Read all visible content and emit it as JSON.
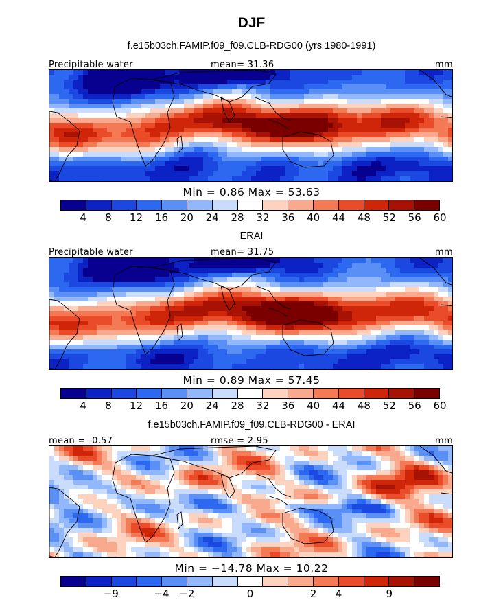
{
  "season": "DJF",
  "palette_main": [
    "#08008f",
    "#0c22c4",
    "#1a48e0",
    "#2c68f0",
    "#5a8ff5",
    "#92b7fa",
    "#cadcfb",
    "#ffffff",
    "#fdd3bf",
    "#f9a98d",
    "#f47a56",
    "#ea4b28",
    "#cf2508",
    "#a81204",
    "#7a0000"
  ],
  "palette_diff": [
    "#08008f",
    "#0c22c4",
    "#1a48e0",
    "#2c68f0",
    "#5a8ff5",
    "#92b7fa",
    "#cadcfb",
    "#ffffff",
    "#fdd3bf",
    "#f9a98d",
    "#f47a56",
    "#ea4b28",
    "#cf2508",
    "#a81204",
    "#7a0000"
  ],
  "panels": [
    {
      "title": "f.e15b03ch.FAMIP.f09_f09.CLB-RDG00 (yrs 1980-1991)",
      "left_label": "Precipitable water",
      "center_label": "mean=  31.36",
      "right_label": "mm",
      "minmax": "Min =    0.86  Max =   53.63",
      "ticks": [
        "4",
        "8",
        "12",
        "16",
        "20",
        "24",
        "28",
        "32",
        "36",
        "40",
        "44",
        "48",
        "52",
        "56",
        "60"
      ]
    },
    {
      "title": "ERAI",
      "left_label": "Precipitable water",
      "center_label": "mean=  31.75",
      "right_label": "mm",
      "minmax": "Min =    0.89  Max =   57.45",
      "ticks": [
        "4",
        "8",
        "12",
        "16",
        "20",
        "24",
        "28",
        "32",
        "36",
        "40",
        "44",
        "48",
        "52",
        "56",
        "60"
      ]
    },
    {
      "title": "f.e15b03ch.FAMIP.f09_f09.CLB-RDG00 - ERAI",
      "left_label": "mean =  -0.57",
      "center_label": "rmse =    2.95",
      "right_label": "mm",
      "minmax": "Min = −14.78  Max =   10.22",
      "ticks": [
        "−9",
        "−4",
        "−2",
        "0",
        "2",
        "4",
        "9"
      ]
    }
  ]
}
